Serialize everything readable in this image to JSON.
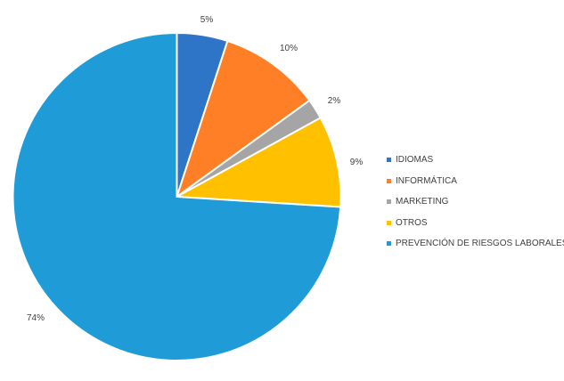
{
  "chart_data": {
    "type": "pie",
    "categories": [
      "IDIOMAS",
      "INFORMÁTICA",
      "MARKETING",
      "OTROS",
      "PREVENCIÓN DE RIESGOS LABORALES"
    ],
    "values": [
      5,
      10,
      2,
      9,
      74
    ],
    "labels": [
      "5%",
      "10%",
      "2%",
      "9%",
      "74%"
    ],
    "colors": [
      "#2e75c8",
      "#ff7f27",
      "#a5a5a5",
      "#ffc000",
      "#1f9bd7"
    ],
    "start_angle": "12 o'clock",
    "direction": "clockwise",
    "legend_position": "right"
  }
}
